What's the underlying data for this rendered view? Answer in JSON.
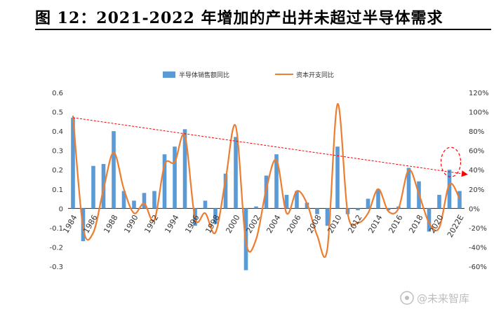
{
  "title": "图 12：2021-2022 年增加的产出并未超过半导体需求",
  "watermark": "@未来智库",
  "colors": {
    "bar": "#5b9bd5",
    "line": "#ed7d31",
    "trend": "#ff0000",
    "highlight": "#ff0000"
  },
  "chart_data": {
    "type": "bar+line",
    "title": "",
    "series": [
      {
        "name": "半导体销售额同比",
        "type": "bar",
        "axis": "left",
        "x": [
          1984,
          1985,
          1986,
          1987,
          1988,
          1989,
          1990,
          1991,
          1992,
          1993,
          1994,
          1995,
          1996,
          1997,
          1998,
          1999,
          2000,
          2001,
          2002,
          2003,
          2004,
          2005,
          2006,
          2007,
          2008,
          2009,
          2010,
          2011,
          2012,
          2013,
          2014,
          2015,
          2016,
          2017,
          2018,
          2019,
          2020,
          2021,
          2022
        ],
        "values": [
          0.47,
          -0.17,
          0.22,
          0.23,
          0.4,
          0.09,
          0.04,
          0.08,
          0.09,
          0.28,
          0.32,
          0.41,
          -0.09,
          0.04,
          -0.08,
          0.18,
          0.37,
          -0.32,
          0.01,
          0.17,
          0.28,
          0.07,
          0.09,
          0.03,
          -0.03,
          -0.09,
          0.32,
          -0.03,
          -0.01,
          0.05,
          0.1,
          -0.01,
          0.01,
          0.21,
          0.14,
          -0.12,
          0.07,
          0.2,
          0.09
        ]
      },
      {
        "name": "资本开支同比",
        "type": "line",
        "axis": "right",
        "x": [
          1984,
          1985,
          1986,
          1987,
          1988,
          1989,
          1990,
          1991,
          1992,
          1993,
          1994,
          1995,
          1996,
          1997,
          1998,
          1999,
          2000,
          2001,
          2002,
          2003,
          2004,
          2005,
          2006,
          2007,
          2008,
          2009,
          2010,
          2011,
          2012,
          2013,
          2014,
          2015,
          2016,
          2017,
          2018,
          2019,
          2020,
          2021,
          2022
        ],
        "values": [
          96,
          -20,
          -25,
          20,
          58,
          20,
          -5,
          5,
          -12,
          45,
          48,
          75,
          -10,
          -5,
          -25,
          30,
          85,
          -35,
          -32,
          20,
          50,
          -5,
          18,
          5,
          -28,
          -42,
          108,
          -5,
          -15,
          -5,
          20,
          -3,
          0,
          40,
          15,
          -15,
          -20,
          25,
          10
        ]
      }
    ],
    "x_tick_labels": [
      "1984",
      "1986",
      "1988",
      "1990",
      "1992",
      "1994",
      "1996",
      "1998",
      "2000",
      "2002",
      "2004",
      "2006",
      "2008",
      "2010",
      "2012",
      "2014",
      "2016",
      "2018",
      "2020",
      "2022E"
    ],
    "left_axis": {
      "ylim": [
        -0.3,
        0.6
      ],
      "ticks": [
        "0.6",
        "0.5",
        "0.4",
        "0.3",
        "0.2",
        "0.1",
        "0",
        "-0.1",
        "-0.2",
        "-0.3"
      ]
    },
    "right_axis": {
      "ylim": [
        -60,
        120
      ],
      "ticks": [
        "120%",
        "100%",
        "80%",
        "60%",
        "40%",
        "20%",
        "0%",
        "-20%",
        "-40%",
        "-60%"
      ]
    },
    "trend_line": {
      "style": "dashed",
      "from": {
        "year": 1984,
        "value": 0.47
      },
      "to": {
        "year": 2022,
        "value": 0.18
      }
    },
    "highlight": {
      "shape": "dashed-ellipse",
      "year": 2021
    },
    "legend_position": "top"
  }
}
